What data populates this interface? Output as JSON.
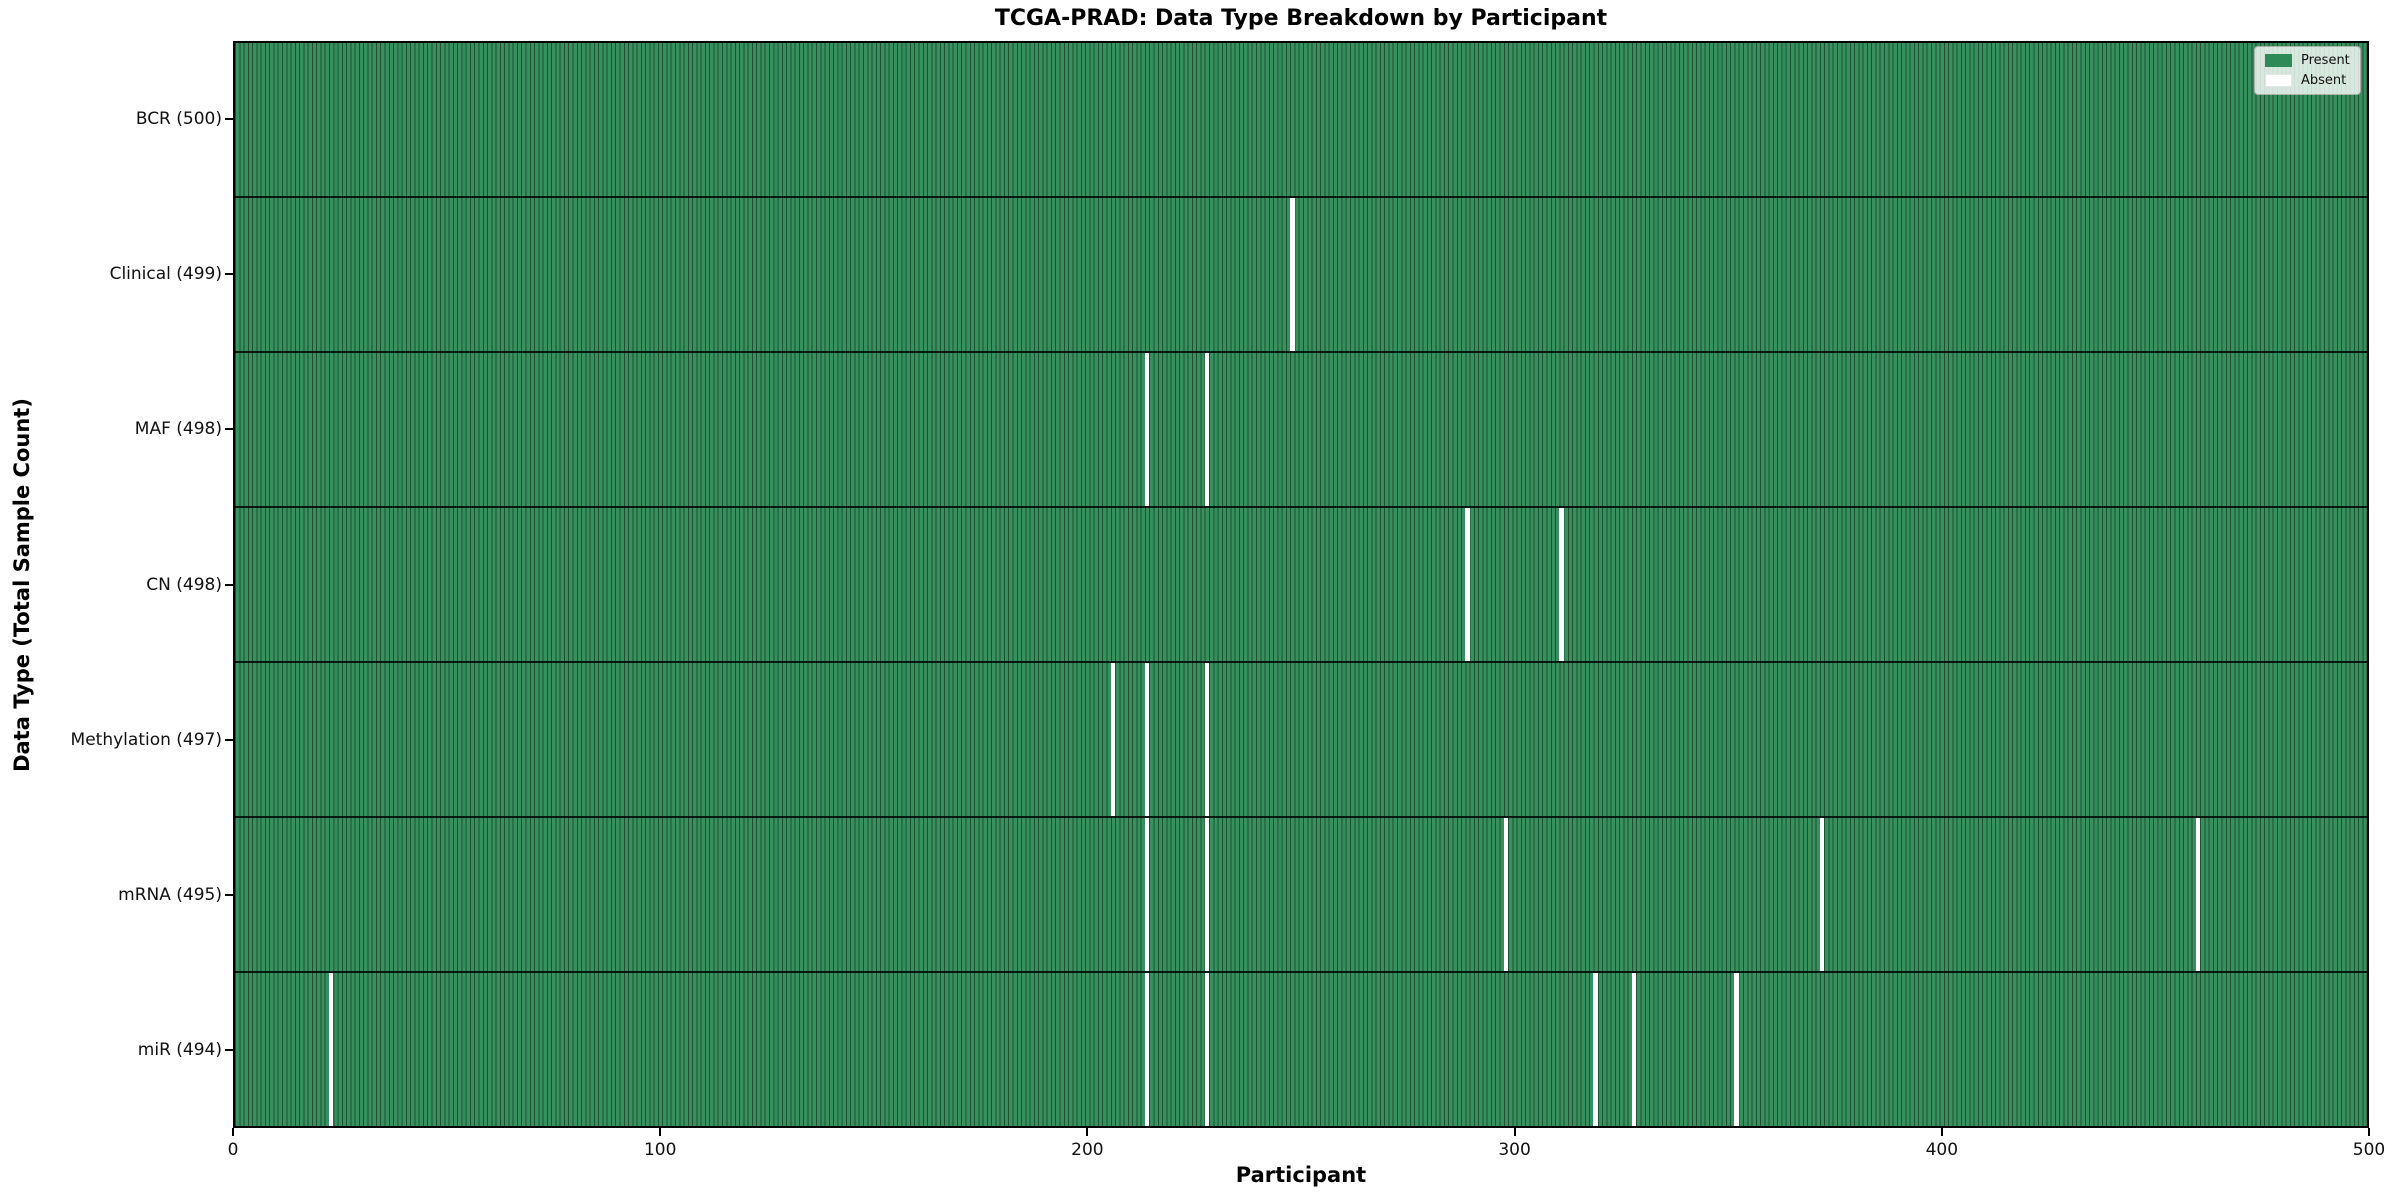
{
  "chart_data": {
    "type": "heatmap",
    "title": "TCGA-PRAD: Data Type Breakdown by Participant",
    "xlabel": "Participant",
    "ylabel": "Data Type (Total Sample Count)",
    "x_range": [
      0,
      500
    ],
    "x_ticks": [
      0,
      100,
      200,
      300,
      400,
      500
    ],
    "n_participants": 500,
    "legend": {
      "position": "upper right",
      "present_label": "Present",
      "absent_label": "Absent"
    },
    "colors": {
      "present_fill": "#36915e",
      "cell_edge": "rgba(0,0,0,0.45)",
      "absent_fill": "#ffffff",
      "legend_present_swatch": "#2e8b57"
    },
    "grid": false,
    "rows": [
      {
        "label": "BCR (500)",
        "name": "BCR",
        "total": 500,
        "absent_participants": []
      },
      {
        "label": "Clinical (499)",
        "name": "Clinical",
        "total": 499,
        "absent_participants": [
          247
        ]
      },
      {
        "label": "MAF (498)",
        "name": "MAF",
        "total": 498,
        "absent_participants": [
          213,
          227
        ]
      },
      {
        "label": "CN (498)",
        "name": "CN",
        "total": 498,
        "absent_participants": [
          288,
          310
        ]
      },
      {
        "label": "Methylation (497)",
        "name": "Methylation",
        "total": 497,
        "absent_participants": [
          205,
          213,
          227
        ]
      },
      {
        "label": "mRNA (495)",
        "name": "mRNA",
        "total": 495,
        "absent_participants": [
          213,
          227,
          297,
          371,
          459
        ]
      },
      {
        "label": "miR (494)",
        "name": "miR",
        "total": 494,
        "absent_participants": [
          22,
          213,
          227,
          318,
          327,
          351
        ]
      }
    ]
  }
}
